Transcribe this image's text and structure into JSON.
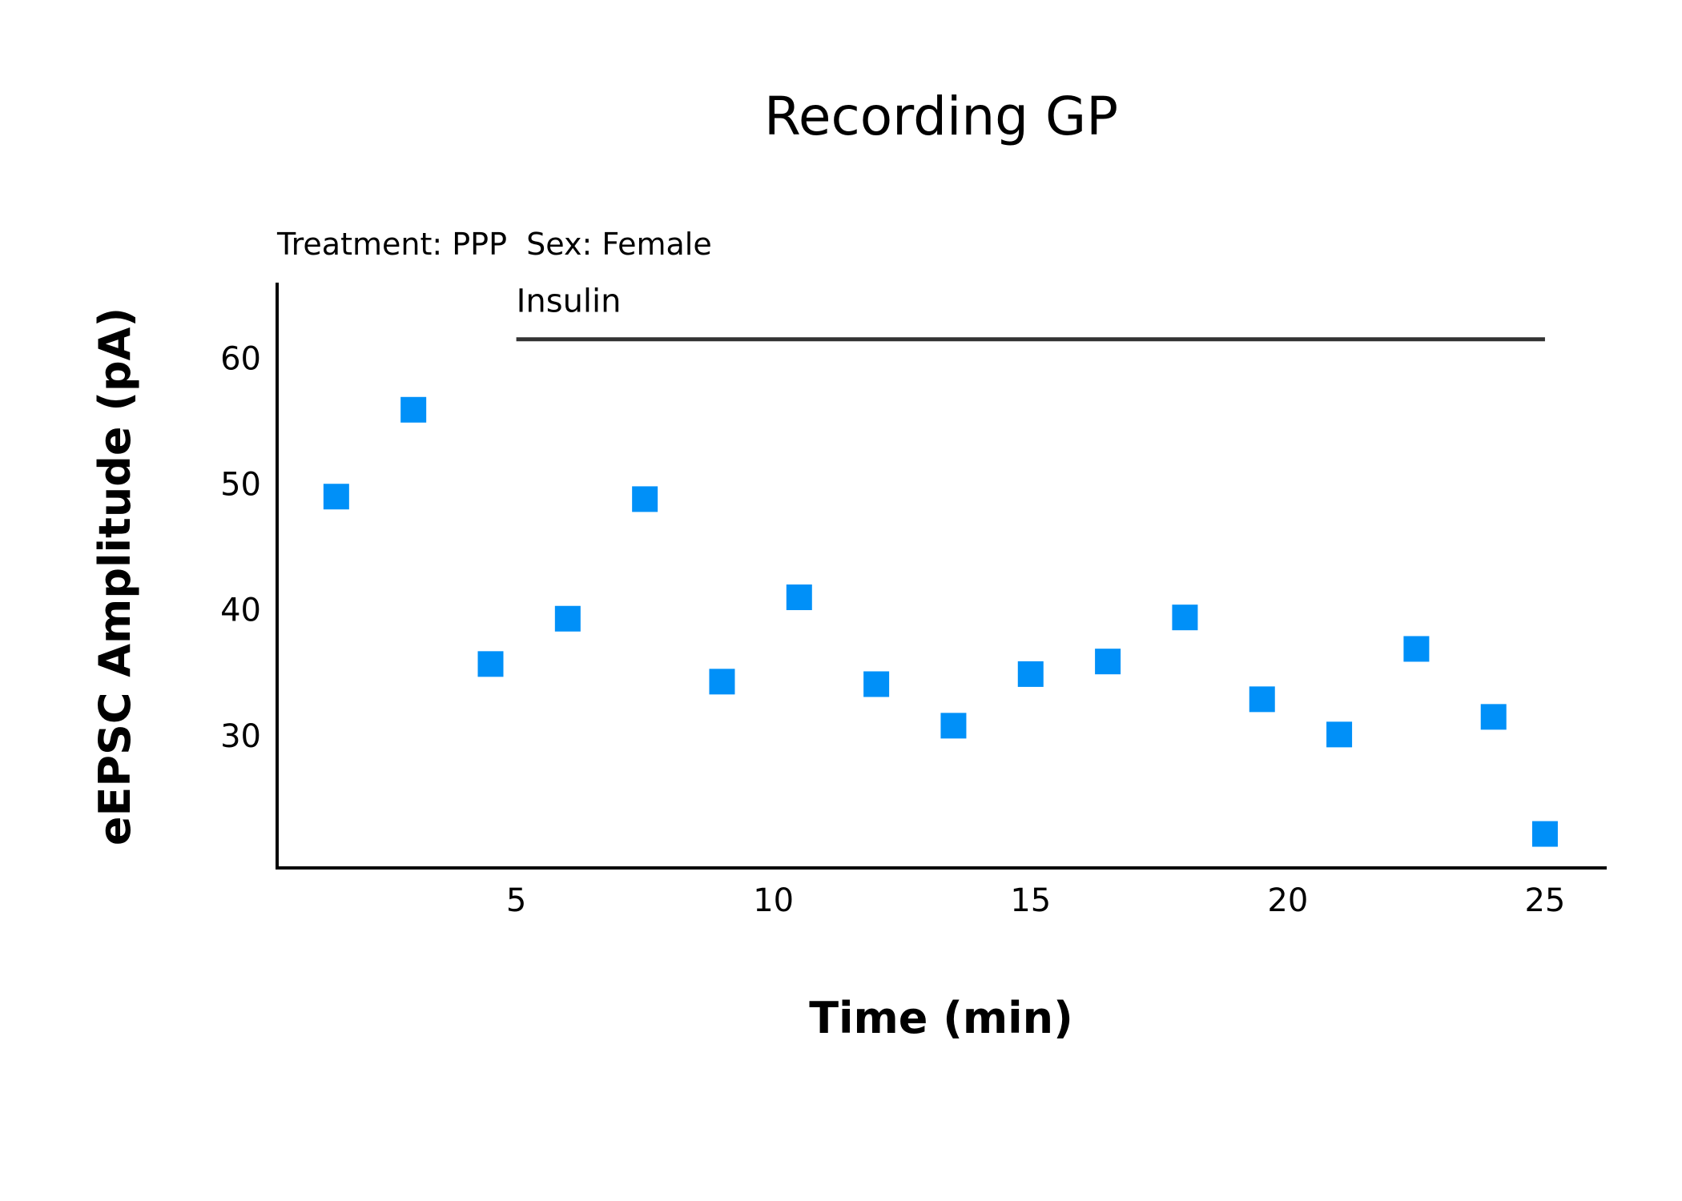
{
  "chart_data": {
    "type": "scatter",
    "title": "Recording GP",
    "subtitle": "Treatment: PPP  Sex: Female",
    "xlabel": "Time (min)",
    "ylabel": "eEPSC Amplitude (pA)",
    "xlim": [
      0.35,
      26.2
    ],
    "ylim": [
      19.5,
      66
    ],
    "xticks": [
      5,
      10,
      15,
      20,
      25
    ],
    "yticks": [
      30,
      40,
      50,
      60
    ],
    "grid": false,
    "marker": "square",
    "marker_color": "#0090f8",
    "series": [
      {
        "x": [
          1.5,
          3,
          4.5,
          6,
          7.5,
          9,
          10.5,
          12,
          13.5,
          15,
          16.5,
          18,
          19.5,
          21,
          22.5,
          24,
          25
        ],
        "y": [
          49,
          55.9,
          35.7,
          39.3,
          48.8,
          34.3,
          41,
          34.1,
          30.8,
          34.9,
          35.9,
          39.4,
          32.9,
          30.1,
          36.9,
          31.5,
          22.2
        ]
      }
    ],
    "annotations": [
      {
        "text": "Insulin",
        "type": "bar",
        "x_start": 5,
        "x_end": 25,
        "y": 61.5
      }
    ]
  }
}
